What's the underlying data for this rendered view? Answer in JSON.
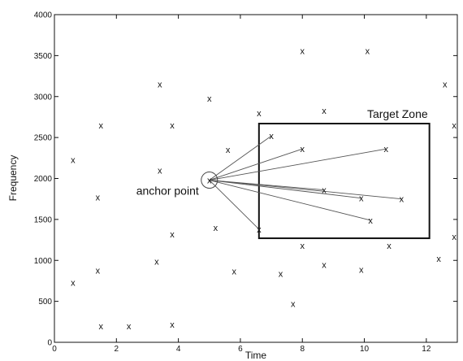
{
  "chart_data": {
    "type": "scatter",
    "title": "",
    "xlabel": "Time",
    "ylabel": "Frequency",
    "xlim": [
      0,
      13
    ],
    "ylim": [
      0,
      4000
    ],
    "x_ticks": [
      0,
      2,
      4,
      6,
      8,
      10,
      12
    ],
    "y_ticks": [
      0,
      500,
      1000,
      1500,
      2000,
      2500,
      3000,
      3500,
      4000
    ],
    "marker_symbol": "x",
    "grid": false,
    "points": [
      {
        "x": 1.5,
        "y": 2650
      },
      {
        "x": 3.4,
        "y": 3150
      },
      {
        "x": 3.8,
        "y": 2650
      },
      {
        "x": 5.0,
        "y": 2980
      },
      {
        "x": 6.6,
        "y": 2800
      },
      {
        "x": 8.0,
        "y": 3560
      },
      {
        "x": 8.7,
        "y": 2830
      },
      {
        "x": 10.1,
        "y": 3560
      },
      {
        "x": 12.6,
        "y": 3150
      },
      {
        "x": 12.9,
        "y": 2650
      },
      {
        "x": 0.6,
        "y": 2230
      },
      {
        "x": 3.4,
        "y": 2100
      },
      {
        "x": 5.6,
        "y": 2350
      },
      {
        "x": 1.4,
        "y": 1770
      },
      {
        "x": 5.2,
        "y": 1400
      },
      {
        "x": 3.8,
        "y": 1320
      },
      {
        "x": 3.3,
        "y": 990
      },
      {
        "x": 1.4,
        "y": 880
      },
      {
        "x": 0.6,
        "y": 730
      },
      {
        "x": 5.8,
        "y": 870
      },
      {
        "x": 7.3,
        "y": 840
      },
      {
        "x": 8.7,
        "y": 950
      },
      {
        "x": 9.9,
        "y": 890
      },
      {
        "x": 8.0,
        "y": 1180
      },
      {
        "x": 10.8,
        "y": 1180
      },
      {
        "x": 12.4,
        "y": 1020
      },
      {
        "x": 12.9,
        "y": 1290
      },
      {
        "x": 7.7,
        "y": 470
      },
      {
        "x": 1.5,
        "y": 200
      },
      {
        "x": 2.4,
        "y": 200
      },
      {
        "x": 3.8,
        "y": 220
      },
      {
        "x": 7.0,
        "y": 2520
      },
      {
        "x": 8.0,
        "y": 2360
      },
      {
        "x": 10.7,
        "y": 2360
      },
      {
        "x": 8.7,
        "y": 1860
      },
      {
        "x": 9.9,
        "y": 1760
      },
      {
        "x": 11.2,
        "y": 1750
      },
      {
        "x": 10.2,
        "y": 1490
      },
      {
        "x": 6.6,
        "y": 1380
      }
    ],
    "anchor_point": {
      "x": 5.0,
      "y": 1980
    },
    "anchor_label": "anchor point",
    "target_zone": {
      "x_range": [
        6.6,
        12.1
      ],
      "y_range": [
        1270,
        2670
      ],
      "label": "Target Zone"
    },
    "connected_points": [
      {
        "x": 7.0,
        "y": 2520
      },
      {
        "x": 8.0,
        "y": 2360
      },
      {
        "x": 10.7,
        "y": 2360
      },
      {
        "x": 8.7,
        "y": 1860
      },
      {
        "x": 9.9,
        "y": 1760
      },
      {
        "x": 11.2,
        "y": 1750
      },
      {
        "x": 10.2,
        "y": 1490
      },
      {
        "x": 6.6,
        "y": 1380
      }
    ]
  }
}
